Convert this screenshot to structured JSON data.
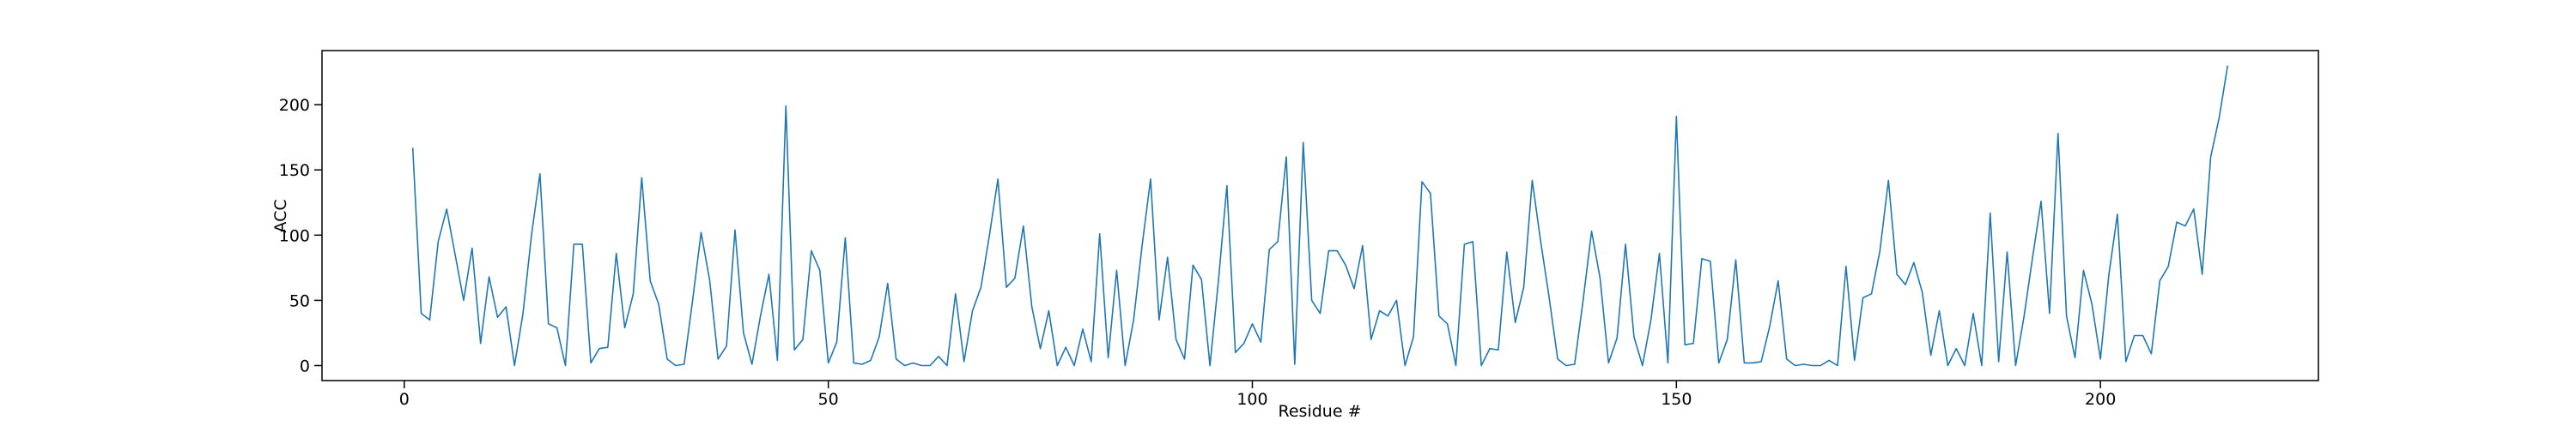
{
  "chart_data": {
    "type": "line",
    "xlabel": "Residue #",
    "ylabel": "ACC",
    "x": [
      1,
      2,
      3,
      4,
      5,
      6,
      7,
      8,
      9,
      10,
      11,
      12,
      13,
      14,
      15,
      16,
      17,
      18,
      19,
      20,
      21,
      22,
      23,
      24,
      25,
      26,
      27,
      28,
      29,
      30,
      31,
      32,
      33,
      34,
      35,
      36,
      37,
      38,
      39,
      40,
      41,
      42,
      43,
      44,
      45,
      46,
      47,
      48,
      49,
      50,
      51,
      52,
      53,
      54,
      55,
      56,
      57,
      58,
      59,
      60,
      61,
      62,
      63,
      64,
      65,
      66,
      67,
      68,
      69,
      70,
      71,
      72,
      73,
      74,
      75,
      76,
      77,
      78,
      79,
      80,
      81,
      82,
      83,
      84,
      85,
      86,
      87,
      88,
      89,
      90,
      91,
      92,
      93,
      94,
      95,
      96,
      97,
      98,
      99,
      100,
      101,
      102,
      103,
      104,
      105,
      106,
      107,
      108,
      109,
      110,
      111,
      112,
      113,
      114,
      115,
      116,
      117,
      118,
      119,
      120,
      121,
      122,
      123,
      124,
      125,
      126,
      127,
      128,
      129,
      130,
      131,
      132,
      133,
      134,
      135,
      136,
      137,
      138,
      139,
      140,
      141,
      142,
      143,
      144,
      145,
      146,
      147,
      148,
      149,
      150,
      151,
      152,
      153,
      154,
      155,
      156,
      157,
      158,
      159,
      160,
      161,
      162,
      163,
      164,
      165,
      166,
      167,
      168,
      169,
      170,
      171,
      172,
      173,
      174,
      175,
      176,
      177,
      178,
      179,
      180,
      181,
      182,
      183,
      184,
      185,
      186,
      187,
      188,
      189,
      190,
      191,
      192,
      193,
      194,
      195,
      196,
      197,
      198,
      199,
      200,
      201,
      202,
      203,
      204,
      205,
      206,
      207,
      208,
      209,
      210,
      211,
      212,
      213,
      214,
      215
    ],
    "series": [
      {
        "color": "#1f77b4",
        "values": [
          167,
          40,
          35,
          95,
          120,
          85,
          50,
          90,
          17,
          68,
          37,
          45,
          0,
          40,
          100,
          147,
          32,
          29,
          0,
          93,
          93,
          2,
          13,
          14,
          86,
          29,
          55,
          144,
          65,
          47,
          5,
          0,
          1,
          50,
          102,
          66,
          5,
          15,
          104,
          25,
          1,
          38,
          70,
          4,
          199,
          12,
          20,
          88,
          73,
          2,
          18,
          98,
          2,
          1,
          4,
          22,
          63,
          5,
          0,
          2,
          0,
          0,
          7,
          0,
          55,
          3,
          42,
          60,
          100,
          143,
          60,
          67,
          107,
          45,
          13,
          42,
          0,
          14,
          0,
          28,
          3,
          101,
          6,
          73,
          0,
          35,
          92,
          143,
          35,
          83,
          20,
          5,
          77,
          66,
          0,
          65,
          138,
          10,
          17,
          32,
          18,
          89,
          95,
          160,
          1,
          171,
          50,
          40,
          88,
          88,
          77,
          59,
          92,
          20,
          42,
          38,
          50,
          0,
          22,
          141,
          132,
          38,
          32,
          0,
          93,
          95,
          0,
          13,
          12,
          87,
          33,
          60,
          142,
          95,
          52,
          5,
          0,
          1,
          50,
          103,
          67,
          2,
          21,
          93,
          22,
          0,
          35,
          86,
          2,
          191,
          16,
          17,
          82,
          80,
          2,
          20,
          81,
          2,
          2,
          3,
          30,
          65,
          5,
          0,
          1,
          0,
          0,
          4,
          0,
          76,
          4,
          52,
          55,
          88,
          142,
          70,
          62,
          79,
          56,
          8,
          42,
          0,
          13,
          0,
          40,
          0,
          117,
          3,
          87,
          0,
          38,
          83,
          126,
          40,
          178,
          38,
          6,
          73,
          47,
          5,
          70,
          116,
          3,
          23,
          23,
          9,
          65,
          76,
          110,
          107,
          120,
          70,
          160,
          190,
          230
        ]
      }
    ],
    "xlim": [
      -9.7,
      225.7
    ],
    "xticks": [
      0,
      50,
      100,
      150,
      200
    ],
    "ylim": [
      -11.5,
      241.5
    ],
    "yticks": [
      0,
      50,
      100,
      150,
      200
    ]
  }
}
